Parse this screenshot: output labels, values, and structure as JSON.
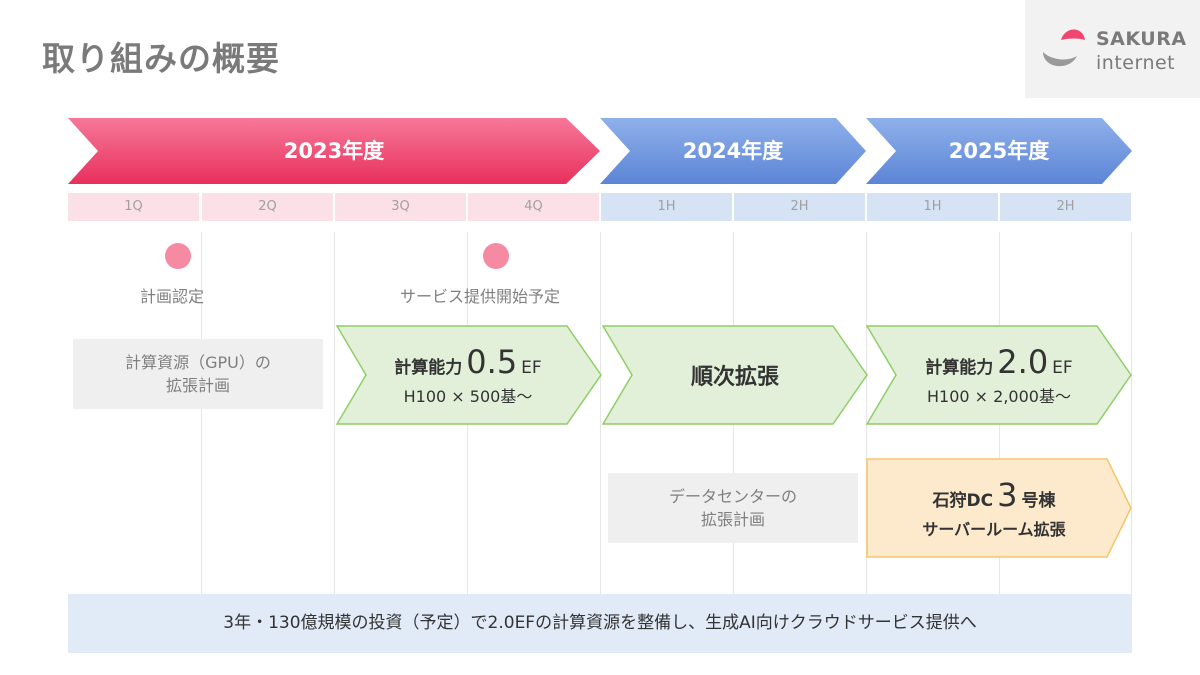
{
  "page": {
    "title": "取り組みの概要"
  },
  "logo": {
    "line1": "SAKURA",
    "line2": "internet"
  },
  "timeline": {
    "years": [
      {
        "label": "2023年度"
      },
      {
        "label": "2024年度"
      },
      {
        "label": "2025年度"
      }
    ],
    "periods": [
      "1Q",
      "2Q",
      "3Q",
      "4Q",
      "1H",
      "2H",
      "1H",
      "2H"
    ]
  },
  "milestones": [
    {
      "label": "計画認定"
    },
    {
      "label": "サービス提供開始予定"
    }
  ],
  "gpu_plan": {
    "line1": "計算資源（GPU）の",
    "line2": "拡張計画"
  },
  "phase1": {
    "prefix": "計算能力",
    "value": "0.5",
    "unit": "EF",
    "detail": "H100 × 500基〜"
  },
  "phase2": {
    "label": "順次拡張"
  },
  "phase3": {
    "prefix": "計算能力",
    "value": "2.0",
    "unit": "EF",
    "detail": "H100 × 2,000基〜"
  },
  "dc_plan": {
    "line1": "データセンターの",
    "line2": "拡張計画"
  },
  "dc_phase": {
    "prefix": "石狩DC",
    "value": "3",
    "suffix": "号棟",
    "detail": "サーバールーム拡張"
  },
  "summary": {
    "text": "3年・130億規模の投資（予定）で2.0EFの計算資源を整備し、生成AI向けクラウドサービス提供へ"
  },
  "colors": {
    "pink_arrow": "#f0456e",
    "blue_arrow": "#6a93dc",
    "green_fill": "#e2f0d9",
    "green_stroke": "#8fce66",
    "orange_fill": "#fde9cc",
    "orange_stroke": "#f5c56b",
    "milestone_dot": "#f68aa3"
  }
}
